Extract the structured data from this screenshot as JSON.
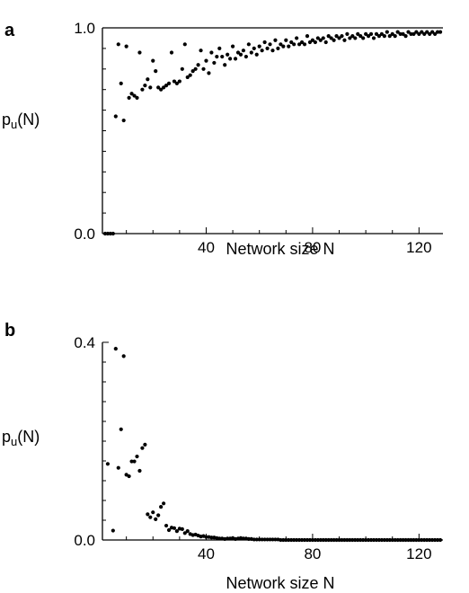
{
  "chart_data": [
    {
      "type": "scatter",
      "panel_label": "a",
      "xlabel": "Network size  N",
      "ylabel": "p",
      "ylabel_sub": "u",
      "ylabel_tail": "(N)",
      "xlim": [
        1,
        129
      ],
      "ylim": [
        0,
        1.0
      ],
      "x_ticks": [
        40,
        80,
        120
      ],
      "y_ticks": [
        0.0,
        1.0
      ],
      "y_tick_labels": [
        "0.0",
        "1.0"
      ],
      "reference_line": 1.0,
      "points": [
        [
          2,
          0
        ],
        [
          3,
          0
        ],
        [
          4,
          0
        ],
        [
          5,
          0
        ],
        [
          6,
          0.57
        ],
        [
          7,
          0.92
        ],
        [
          8,
          0.73
        ],
        [
          9,
          0.55
        ],
        [
          10,
          0.91
        ],
        [
          11,
          0.66
        ],
        [
          12,
          0.68
        ],
        [
          13,
          0.67
        ],
        [
          14,
          0.66
        ],
        [
          15,
          0.88
        ],
        [
          16,
          0.7
        ],
        [
          17,
          0.72
        ],
        [
          18,
          0.75
        ],
        [
          19,
          0.71
        ],
        [
          20,
          0.84
        ],
        [
          21,
          0.79
        ],
        [
          22,
          0.71
        ],
        [
          23,
          0.7
        ],
        [
          24,
          0.71
        ],
        [
          25,
          0.72
        ],
        [
          26,
          0.73
        ],
        [
          27,
          0.88
        ],
        [
          28,
          0.74
        ],
        [
          29,
          0.73
        ],
        [
          30,
          0.74
        ],
        [
          31,
          0.8
        ],
        [
          32,
          0.92
        ],
        [
          33,
          0.76
        ],
        [
          34,
          0.77
        ],
        [
          35,
          0.79
        ],
        [
          36,
          0.8
        ],
        [
          37,
          0.82
        ],
        [
          38,
          0.89
        ],
        [
          39,
          0.8
        ],
        [
          40,
          0.84
        ],
        [
          41,
          0.78
        ],
        [
          42,
          0.88
        ],
        [
          43,
          0.83
        ],
        [
          44,
          0.86
        ],
        [
          45,
          0.9
        ],
        [
          46,
          0.86
        ],
        [
          47,
          0.82
        ],
        [
          48,
          0.87
        ],
        [
          49,
          0.85
        ],
        [
          50,
          0.91
        ],
        [
          51,
          0.85
        ],
        [
          52,
          0.88
        ],
        [
          53,
          0.87
        ],
        [
          54,
          0.89
        ],
        [
          55,
          0.86
        ],
        [
          56,
          0.92
        ],
        [
          57,
          0.88
        ],
        [
          58,
          0.9
        ],
        [
          59,
          0.87
        ],
        [
          60,
          0.91
        ],
        [
          61,
          0.89
        ],
        [
          62,
          0.93
        ],
        [
          63,
          0.9
        ],
        [
          64,
          0.92
        ],
        [
          65,
          0.89
        ],
        [
          66,
          0.94
        ],
        [
          67,
          0.9
        ],
        [
          68,
          0.92
        ],
        [
          69,
          0.91
        ],
        [
          70,
          0.94
        ],
        [
          71,
          0.91
        ],
        [
          72,
          0.93
        ],
        [
          73,
          0.92
        ],
        [
          74,
          0.95
        ],
        [
          75,
          0.92
        ],
        [
          76,
          0.93
        ],
        [
          77,
          0.92
        ],
        [
          78,
          0.96
        ],
        [
          79,
          0.93
        ],
        [
          80,
          0.94
        ],
        [
          81,
          0.93
        ],
        [
          82,
          0.95
        ],
        [
          83,
          0.94
        ],
        [
          84,
          0.95
        ],
        [
          85,
          0.93
        ],
        [
          86,
          0.96
        ],
        [
          87,
          0.95
        ],
        [
          88,
          0.94
        ],
        [
          89,
          0.96
        ],
        [
          90,
          0.95
        ],
        [
          91,
          0.96
        ],
        [
          92,
          0.94
        ],
        [
          93,
          0.97
        ],
        [
          94,
          0.95
        ],
        [
          95,
          0.96
        ],
        [
          96,
          0.95
        ],
        [
          97,
          0.97
        ],
        [
          98,
          0.96
        ],
        [
          99,
          0.95
        ],
        [
          100,
          0.97
        ],
        [
          101,
          0.96
        ],
        [
          102,
          0.97
        ],
        [
          103,
          0.95
        ],
        [
          104,
          0.97
        ],
        [
          105,
          0.96
        ],
        [
          106,
          0.97
        ],
        [
          107,
          0.96
        ],
        [
          108,
          0.98
        ],
        [
          109,
          0.96
        ],
        [
          110,
          0.97
        ],
        [
          111,
          0.96
        ],
        [
          112,
          0.98
        ],
        [
          113,
          0.97
        ],
        [
          114,
          0.97
        ],
        [
          115,
          0.96
        ],
        [
          116,
          0.98
        ],
        [
          117,
          0.97
        ],
        [
          118,
          0.97
        ],
        [
          119,
          0.98
        ],
        [
          120,
          0.97
        ],
        [
          121,
          0.98
        ],
        [
          122,
          0.97
        ],
        [
          123,
          0.98
        ],
        [
          124,
          0.97
        ],
        [
          125,
          0.98
        ],
        [
          126,
          0.97
        ],
        [
          127,
          0.98
        ],
        [
          128,
          0.98
        ]
      ]
    },
    {
      "type": "scatter",
      "panel_label": "b",
      "xlabel": "Network size  N",
      "ylabel": "p",
      "ylabel_sub": "u",
      "ylabel_tail": "(N)",
      "xlim": [
        1,
        129
      ],
      "ylim": [
        0,
        0.4
      ],
      "x_ticks": [
        40,
        80,
        120
      ],
      "y_ticks": [
        0.0,
        0.4
      ],
      "y_tick_labels": [
        "0.0",
        "0.4"
      ],
      "points": [
        [
          3,
          0.154
        ],
        [
          5,
          0.019
        ],
        [
          6,
          0.387
        ],
        [
          7,
          0.146
        ],
        [
          8,
          0.224
        ],
        [
          9,
          0.372
        ],
        [
          10,
          0.132
        ],
        [
          11,
          0.129
        ],
        [
          12,
          0.159
        ],
        [
          13,
          0.159
        ],
        [
          14,
          0.169
        ],
        [
          15,
          0.14
        ],
        [
          16,
          0.186
        ],
        [
          17,
          0.193
        ],
        [
          18,
          0.052
        ],
        [
          19,
          0.046
        ],
        [
          20,
          0.056
        ],
        [
          21,
          0.042
        ],
        [
          22,
          0.05
        ],
        [
          23,
          0.067
        ],
        [
          24,
          0.074
        ],
        [
          25,
          0.029
        ],
        [
          26,
          0.02
        ],
        [
          27,
          0.025
        ],
        [
          28,
          0.024
        ],
        [
          29,
          0.018
        ],
        [
          30,
          0.023
        ],
        [
          31,
          0.022
        ],
        [
          32,
          0.014
        ],
        [
          33,
          0.018
        ],
        [
          34,
          0.012
        ],
        [
          35,
          0.01
        ],
        [
          36,
          0.011
        ],
        [
          37,
          0.009
        ],
        [
          38,
          0.007
        ],
        [
          39,
          0.008
        ],
        [
          40,
          0.006
        ],
        [
          41,
          0.006
        ],
        [
          42,
          0.005
        ],
        [
          43,
          0.005
        ],
        [
          44,
          0.004
        ],
        [
          45,
          0.003
        ],
        [
          46,
          0.003
        ],
        [
          47,
          0.002
        ],
        [
          48,
          0.003
        ],
        [
          49,
          0.003
        ],
        [
          50,
          0.004
        ],
        [
          51,
          0.002
        ],
        [
          52,
          0.003
        ],
        [
          53,
          0.004
        ],
        [
          54,
          0.003
        ],
        [
          55,
          0.003
        ],
        [
          56,
          0.002
        ],
        [
          57,
          0.002
        ],
        [
          58,
          0.001
        ],
        [
          59,
          0.001
        ],
        [
          60,
          0.001
        ],
        [
          61,
          0.001
        ],
        [
          62,
          0.001
        ],
        [
          63,
          0.001
        ],
        [
          64,
          0.001
        ],
        [
          65,
          0.001
        ],
        [
          66,
          0.001
        ],
        [
          67,
          0.001
        ],
        [
          68,
          0
        ],
        [
          69,
          0
        ],
        [
          70,
          0
        ],
        [
          71,
          0
        ],
        [
          72,
          0
        ],
        [
          73,
          0
        ],
        [
          74,
          0
        ],
        [
          75,
          0
        ],
        [
          76,
          0
        ],
        [
          77,
          0
        ],
        [
          78,
          0
        ],
        [
          79,
          0
        ],
        [
          80,
          0
        ],
        [
          81,
          0
        ],
        [
          82,
          0
        ],
        [
          83,
          0
        ],
        [
          84,
          0
        ],
        [
          85,
          0
        ],
        [
          86,
          0
        ],
        [
          87,
          0
        ],
        [
          88,
          0
        ],
        [
          89,
          0
        ],
        [
          90,
          0
        ],
        [
          91,
          0
        ],
        [
          92,
          0
        ],
        [
          93,
          0
        ],
        [
          94,
          0
        ],
        [
          95,
          0
        ],
        [
          96,
          0
        ],
        [
          97,
          0
        ],
        [
          98,
          0
        ],
        [
          99,
          0
        ],
        [
          100,
          0
        ],
        [
          101,
          0
        ],
        [
          102,
          0
        ],
        [
          103,
          0
        ],
        [
          104,
          0
        ],
        [
          105,
          0
        ],
        [
          106,
          0
        ],
        [
          107,
          0
        ],
        [
          108,
          0
        ],
        [
          109,
          0
        ],
        [
          110,
          0
        ],
        [
          111,
          0
        ],
        [
          112,
          0
        ],
        [
          113,
          0
        ],
        [
          114,
          0
        ],
        [
          115,
          0
        ],
        [
          116,
          0
        ],
        [
          117,
          0
        ],
        [
          118,
          0
        ],
        [
          119,
          0
        ],
        [
          120,
          0
        ],
        [
          121,
          0
        ],
        [
          122,
          0
        ],
        [
          123,
          0
        ],
        [
          124,
          0
        ],
        [
          125,
          0
        ],
        [
          126,
          0
        ],
        [
          127,
          0
        ],
        [
          128,
          0
        ]
      ]
    }
  ],
  "colors": {
    "marker": "#000000",
    "axis": "#000000",
    "background": "#ffffff"
  }
}
